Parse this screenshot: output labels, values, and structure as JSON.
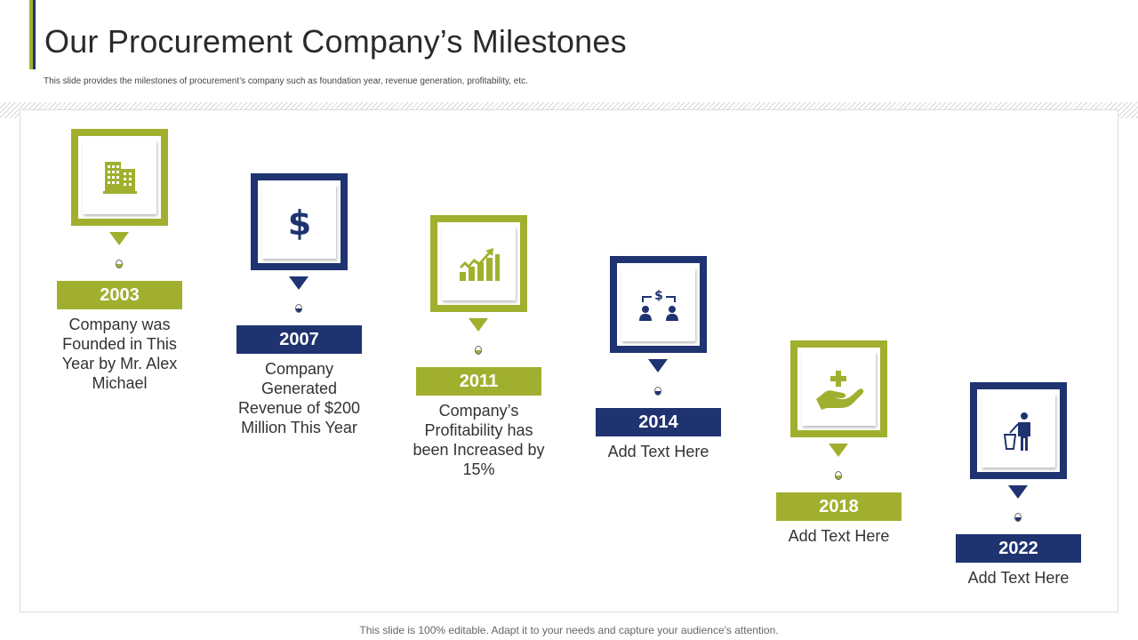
{
  "header": {
    "title": "Our Procurement Company’s Milestones",
    "subtitle": "This slide provides the milestones of procurement’s company such as foundation year, revenue generation, profitability, etc."
  },
  "milestones": [
    {
      "year": "2003",
      "text": "Company was Founded in This Year by Mr. Alex Michael",
      "icon": "building-icon",
      "color": "#a0b02e"
    },
    {
      "year": "2007",
      "text": "Company Generated Revenue of $200 Million This Year",
      "icon": "dollar-icon",
      "color": "#1f3370"
    },
    {
      "year": "2011",
      "text": "Company’s Profitability has been Increased by 15%",
      "icon": "growth-chart-icon",
      "color": "#a0b02e"
    },
    {
      "year": "2014",
      "text": "Add Text Here",
      "icon": "money-transfer-icon",
      "color": "#1f3370"
    },
    {
      "year": "2018",
      "text": "Add Text Here",
      "icon": "hand-plus-icon",
      "color": "#a0b02e"
    },
    {
      "year": "2022",
      "text": "Add Text Here",
      "icon": "person-trash-icon",
      "color": "#1f3370"
    }
  ],
  "footer": {
    "text": "This slide is 100% editable. Adapt it to your needs and capture your audience's attention."
  },
  "colors": {
    "green": "#a0b02e",
    "navy": "#1f3370"
  }
}
